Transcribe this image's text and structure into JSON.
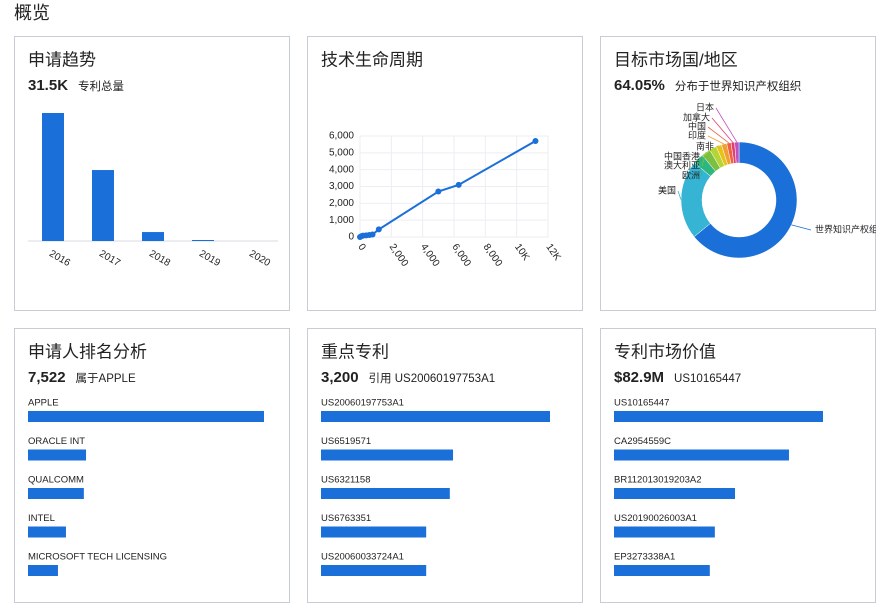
{
  "page_title": "概览",
  "chart_data": [
    {
      "type": "bar",
      "title": "申请趋势",
      "stat": "31.5K",
      "stat_label": "专利总量",
      "color": "#1a6fd8",
      "categories": [
        "2016",
        "2017",
        "2018",
        "2019",
        "2020"
      ],
      "values": [
        19300,
        10700,
        1350,
        150,
        0
      ]
    },
    {
      "type": "line",
      "title": "技术生命周期",
      "color": "#1a6fd8",
      "grid": true,
      "x": [
        0,
        100,
        200,
        400,
        600,
        800,
        1200,
        5000,
        6300,
        11200
      ],
      "values": [
        0,
        50,
        80,
        100,
        120,
        150,
        450,
        2700,
        3100,
        5700
      ],
      "xlim": [
        0,
        12000
      ],
      "xticks": [
        0,
        {
          "value": 2000,
          "label": "2,000"
        },
        {
          "value": 4000,
          "label": "4,000"
        },
        {
          "value": 6000,
          "label": "6,000"
        },
        {
          "value": 8000,
          "label": "8,000"
        },
        {
          "value": 10000,
          "label": "10K"
        },
        {
          "value": 12000,
          "label": "12K"
        }
      ],
      "ylim": [
        0,
        6000
      ],
      "yticks": [
        0,
        {
          "value": 1000,
          "label": "1,000"
        },
        {
          "value": 2000,
          "label": "2,000"
        },
        {
          "value": 3000,
          "label": "3,000"
        },
        {
          "value": 4000,
          "label": "4,000"
        },
        {
          "value": 5000,
          "label": "5,000"
        },
        {
          "value": 6000,
          "label": "6,000"
        }
      ]
    },
    {
      "type": "pie",
      "title": "目标市场国/地区",
      "stat": "64.05%",
      "stat_label": "分布于世界知识产权组织",
      "categories": [
        "世界知识产权组织",
        "美国",
        "欧洲",
        "澳大利亚",
        "中国香港",
        "南非",
        "印度",
        "中国",
        "加拿大",
        "日本"
      ],
      "values": [
        64.05,
        22,
        3,
        2.5,
        2,
        1.5,
        1.5,
        1.2,
        1,
        1.2
      ],
      "colors": [
        "#1a6fd8",
        "#35b5d3",
        "#2fb57f",
        "#7bc043",
        "#b6d433",
        "#e8c21a",
        "#f0a030",
        "#f06040",
        "#e04070",
        "#c050c0"
      ]
    },
    {
      "type": "hbar",
      "title": "申请人排名分析",
      "stat": "7,522",
      "stat_label": "属于APPLE",
      "color": "#1a6fd8",
      "categories": [
        "APPLE",
        "ORACLE INT",
        "QUALCOMM",
        "INTEL",
        "MICROSOFT TECH LICENSING"
      ],
      "values": [
        7522,
        1850,
        1780,
        1210,
        955
      ]
    },
    {
      "type": "hbar",
      "title": "重点专利",
      "stat": "3,200",
      "stat_label": "引用 US20060197753A1",
      "color": "#1a6fd8",
      "categories": [
        "US20060197753A1",
        "US6519571",
        "US6321158",
        "US6763351",
        "US20060033724A1"
      ],
      "values": [
        3200,
        1845,
        1800,
        1470,
        1470
      ]
    },
    {
      "type": "hbar",
      "title": "专利市场价值",
      "stat": "$82.9M",
      "stat_label": "US10165447",
      "color": "#1a6fd8",
      "categories": [
        "US10165447",
        "CA2954559C",
        "BR112013019203A2",
        "US20190026003A1",
        "EP3273338A1"
      ],
      "values": [
        82900000,
        69400000,
        48000000,
        40000000,
        38000000
      ]
    }
  ]
}
